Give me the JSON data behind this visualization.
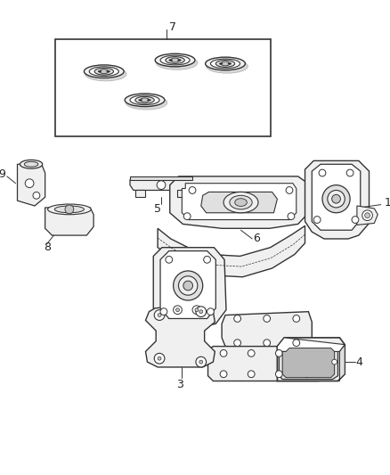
{
  "bg_color": "#ffffff",
  "lc": "#333333",
  "lc_thin": "#555555",
  "fill_white": "#ffffff",
  "fill_light": "#f0f0f0",
  "fill_mid": "#e0e0e0",
  "fill_dark": "#c8c8c8",
  "figsize": [
    4.38,
    5.33
  ],
  "dpi": 100
}
